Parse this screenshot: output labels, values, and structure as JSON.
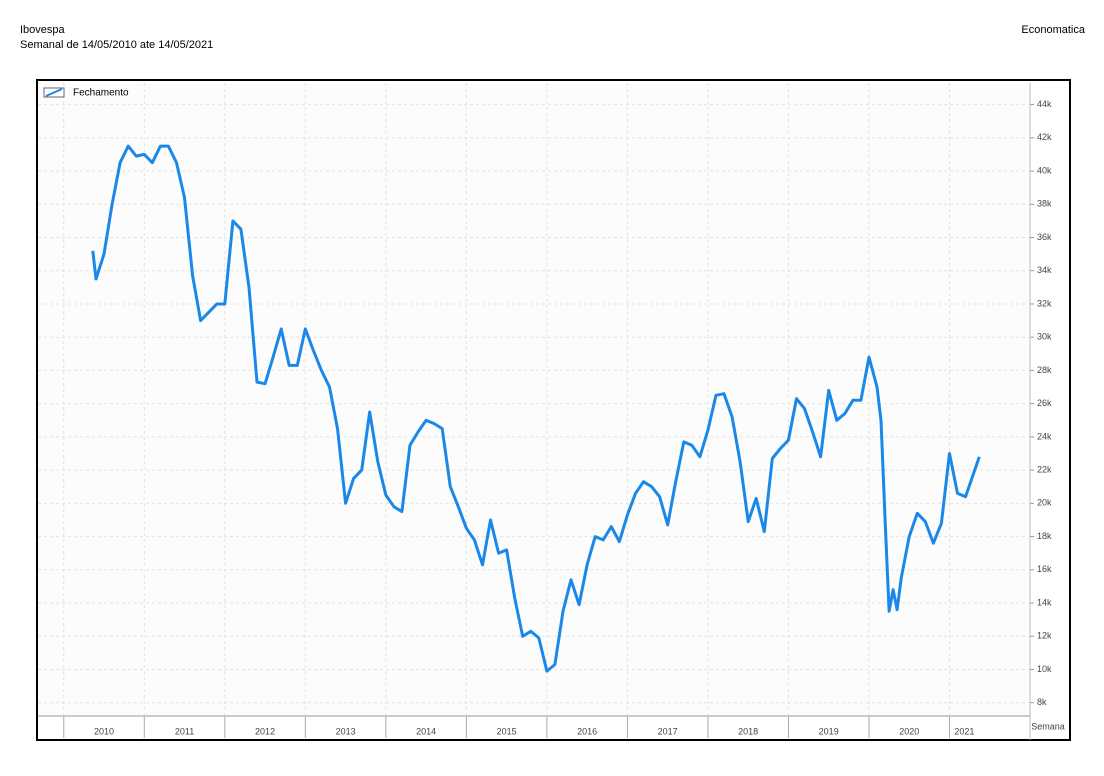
{
  "chart_data": {
    "type": "line",
    "title": "Ibovespa",
    "subtitle": "Semanal de 14/05/2010 ate 14/05/2021",
    "source": "Economatica",
    "x_label": "Semana",
    "xlim": [
      2009.68,
      2022.0
    ],
    "xticks": [
      2010,
      2011,
      2012,
      2013,
      2014,
      2015,
      2016,
      2017,
      2018,
      2019,
      2020,
      2021
    ],
    "ylim": [
      7200,
      45300
    ],
    "yticks": [
      {
        "value": 8000,
        "label": "8k"
      },
      {
        "value": 10000,
        "label": "10k"
      },
      {
        "value": 12000,
        "label": "12k"
      },
      {
        "value": 14000,
        "label": "14k"
      },
      {
        "value": 16000,
        "label": "16k"
      },
      {
        "value": 18000,
        "label": "18k"
      },
      {
        "value": 20000,
        "label": "20k"
      },
      {
        "value": 22000,
        "label": "22k"
      },
      {
        "value": 24000,
        "label": "24k"
      },
      {
        "value": 26000,
        "label": "26k"
      },
      {
        "value": 28000,
        "label": "28k"
      },
      {
        "value": 30000,
        "label": "30k"
      },
      {
        "value": 32000,
        "label": "32k"
      },
      {
        "value": 34000,
        "label": "34k"
      },
      {
        "value": 36000,
        "label": "36k"
      },
      {
        "value": 38000,
        "label": "38k"
      },
      {
        "value": 40000,
        "label": "40k"
      },
      {
        "value": 42000,
        "label": "42k"
      },
      {
        "value": 44000,
        "label": "44k"
      }
    ],
    "grid": true,
    "legend": "top-left",
    "x": [
      2010.36,
      2010.4,
      2010.5,
      2010.6,
      2010.7,
      2010.8,
      2010.9,
      2011.0,
      2011.1,
      2011.2,
      2011.3,
      2011.4,
      2011.5,
      2011.6,
      2011.7,
      2011.8,
      2011.9,
      2012.0,
      2012.1,
      2012.2,
      2012.3,
      2012.4,
      2012.5,
      2012.6,
      2012.7,
      2012.8,
      2012.9,
      2013.0,
      2013.1,
      2013.2,
      2013.3,
      2013.4,
      2013.5,
      2013.6,
      2013.7,
      2013.8,
      2013.9,
      2014.0,
      2014.1,
      2014.2,
      2014.3,
      2014.4,
      2014.5,
      2014.6,
      2014.7,
      2014.8,
      2014.9,
      2015.0,
      2015.1,
      2015.2,
      2015.3,
      2015.4,
      2015.5,
      2015.6,
      2015.7,
      2015.8,
      2015.9,
      2016.0,
      2016.1,
      2016.2,
      2016.3,
      2016.4,
      2016.5,
      2016.6,
      2016.7,
      2016.8,
      2016.9,
      2017.0,
      2017.1,
      2017.2,
      2017.3,
      2017.4,
      2017.5,
      2017.6,
      2017.7,
      2017.8,
      2017.9,
      2018.0,
      2018.1,
      2018.2,
      2018.3,
      2018.4,
      2018.5,
      2018.6,
      2018.7,
      2018.8,
      2018.9,
      2019.0,
      2019.1,
      2019.2,
      2019.3,
      2019.4,
      2019.5,
      2019.6,
      2019.7,
      2019.8,
      2019.9,
      2020.0,
      2020.1,
      2020.15,
      2020.2,
      2020.25,
      2020.3,
      2020.35,
      2020.4,
      2020.5,
      2020.6,
      2020.7,
      2020.8,
      2020.9,
      2021.0,
      2021.1,
      2021.2,
      2021.3,
      2021.37
    ],
    "series": [
      {
        "name": "Fechamento",
        "color": "#1a88e8",
        "values": [
          35200,
          33500,
          35000,
          38000,
          40500,
          41500,
          40900,
          41000,
          40500,
          41500,
          41500,
          40500,
          38400,
          33700,
          31000,
          31500,
          32000,
          32000,
          37000,
          36500,
          33000,
          27300,
          27200,
          28800,
          30500,
          28300,
          28300,
          30500,
          29200,
          28000,
          27000,
          24500,
          20000,
          21500,
          22000,
          25500,
          22500,
          20500,
          19800,
          19500,
          23500,
          24300,
          25000,
          24800,
          24500,
          21000,
          19800,
          18500,
          17800,
          16300,
          19000,
          17000,
          17200,
          14300,
          12000,
          12300,
          11900,
          9900,
          10300,
          13500,
          15400,
          13900,
          16300,
          18000,
          17800,
          18600,
          17700,
          19300,
          20600,
          21300,
          21000,
          20400,
          18700,
          21300,
          23700,
          23500,
          22800,
          24400,
          26500,
          26600,
          25200,
          22500,
          18900,
          20300,
          18300,
          22700,
          23300,
          23800,
          26300,
          25700,
          24300,
          22800,
          26800,
          25000,
          25400,
          26200,
          26200,
          28800,
          27000,
          25000,
          19000,
          13500,
          14800,
          13600,
          15500,
          18000,
          19400,
          18900,
          17600,
          18800,
          23000,
          20600,
          20400,
          21800,
          22800
        ]
      }
    ]
  }
}
